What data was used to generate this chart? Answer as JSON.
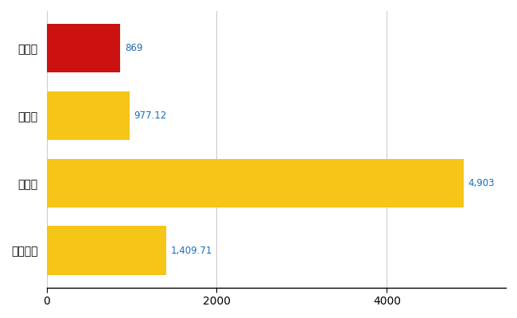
{
  "categories": [
    "下呂市",
    "県平均",
    "県最大",
    "全国平均"
  ],
  "values": [
    869,
    977.12,
    4903,
    1409.71
  ],
  "bar_colors": [
    "#cc1111",
    "#f5c518",
    "#f5c518",
    "#f5c518"
  ],
  "value_labels": [
    "869",
    "977.12",
    "4,903",
    "1,409.71"
  ],
  "value_color": "#1a6eb5",
  "xlim": [
    0,
    5400
  ],
  "xticks": [
    0,
    2000,
    4000
  ],
  "background_color": "#ffffff",
  "grid_color": "#cccccc",
  "bar_height": 0.72,
  "figsize": [
    6.5,
    4.0
  ],
  "dpi": 100,
  "label_fontsize": 8.5,
  "ytick_fontsize": 10,
  "xtick_fontsize": 10
}
